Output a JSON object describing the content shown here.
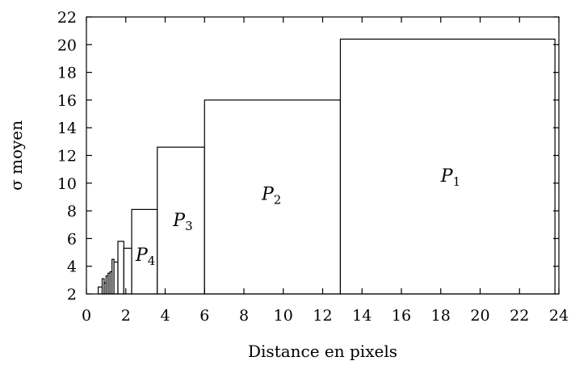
{
  "chart_data": {
    "type": "bar",
    "xlabel": "Distance en pixels",
    "ylabel": "σ moyen",
    "xlim": [
      0,
      24
    ],
    "ylim": [
      2,
      22
    ],
    "x_ticks": [
      "0",
      "2",
      "4",
      "6",
      "8",
      "10",
      "12",
      "14",
      "16",
      "18",
      "20",
      "22",
      "24"
    ],
    "y_ticks": [
      "2",
      "4",
      "6",
      "8",
      "10",
      "12",
      "14",
      "16",
      "18",
      "20",
      "22"
    ],
    "bars": [
      {
        "x_start": 0.6,
        "x_end": 0.8,
        "value": 2.5,
        "label": ""
      },
      {
        "x_start": 0.8,
        "x_end": 0.9,
        "value": 3.1,
        "label": ""
      },
      {
        "x_start": 0.9,
        "x_end": 1.0,
        "value": 2.8,
        "label": ""
      },
      {
        "x_start": 1.0,
        "x_end": 1.1,
        "value": 3.3,
        "label": ""
      },
      {
        "x_start": 1.1,
        "x_end": 1.2,
        "value": 3.5,
        "label": ""
      },
      {
        "x_start": 1.2,
        "x_end": 1.3,
        "value": 3.6,
        "label": ""
      },
      {
        "x_start": 1.3,
        "x_end": 1.4,
        "value": 4.5,
        "label": ""
      },
      {
        "x_start": 1.4,
        "x_end": 1.6,
        "value": 4.3,
        "label": ""
      },
      {
        "x_start": 1.6,
        "x_end": 1.9,
        "value": 5.8,
        "label": ""
      },
      {
        "x_start": 1.9,
        "x_end": 2.3,
        "value": 5.3,
        "label": ""
      },
      {
        "x_start": 2.3,
        "x_end": 3.6,
        "value": 8.1,
        "label": "P4"
      },
      {
        "x_start": 3.6,
        "x_end": 6.0,
        "value": 12.6,
        "label": "P3"
      },
      {
        "x_start": 6.0,
        "x_end": 12.9,
        "value": 16.0,
        "label": "P2"
      },
      {
        "x_start": 12.9,
        "x_end": 23.8,
        "value": 20.4,
        "label": "P1"
      }
    ],
    "labels": [
      {
        "main": "P",
        "sub": "1",
        "x": 18.5,
        "y": 10.1
      },
      {
        "main": "P",
        "sub": "2",
        "x": 9.4,
        "y": 8.8
      },
      {
        "main": "P",
        "sub": "3",
        "x": 4.9,
        "y": 6.9
      },
      {
        "main": "P",
        "sub": "4",
        "x": 3.0,
        "y": 4.4
      }
    ],
    "grid": false,
    "legend": "none"
  }
}
